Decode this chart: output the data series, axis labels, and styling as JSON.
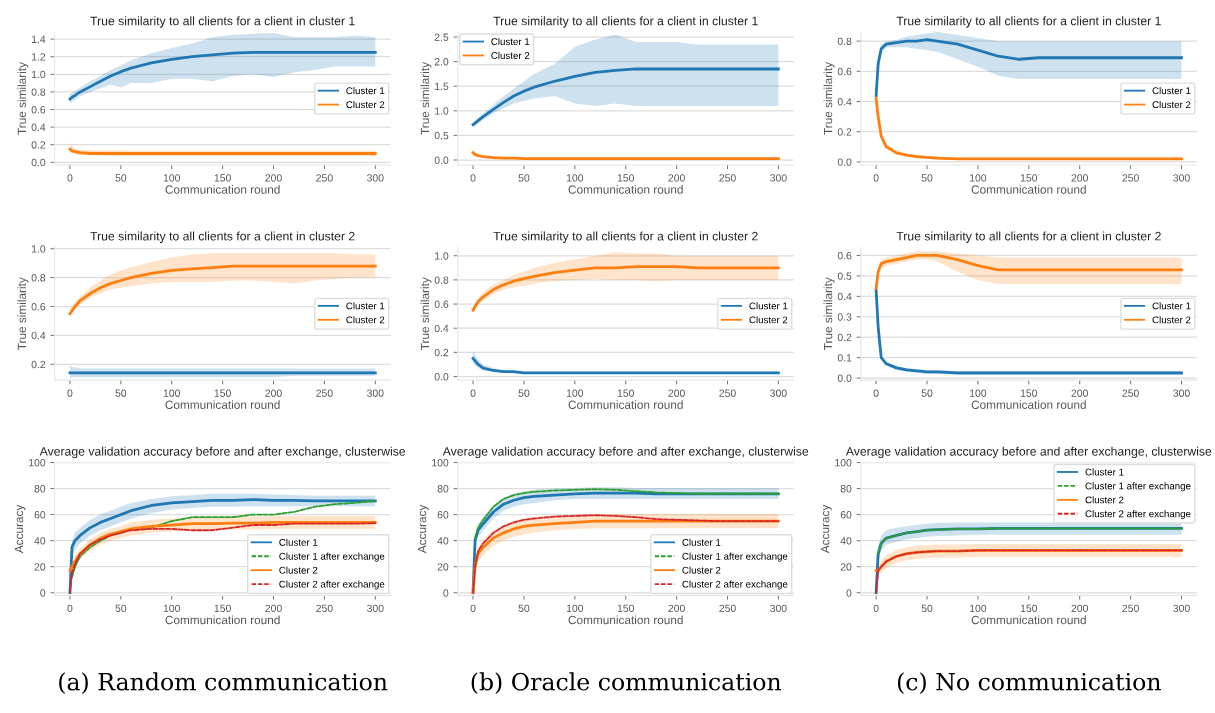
{
  "chart_data": [
    {
      "type": "line",
      "title": "True similarity to all clients for a client in cluster 1",
      "xlabel": "Communication round",
      "ylabel": "True similarity",
      "x": [
        0,
        2,
        5,
        10,
        20,
        30,
        40,
        50,
        60,
        80,
        100,
        120,
        140,
        160,
        180,
        200,
        220,
        240,
        260,
        280,
        300
      ],
      "xlim": [
        -15,
        315
      ],
      "xticks": [
        0,
        50,
        100,
        150,
        200,
        250,
        300
      ],
      "ylim": [
        -0.03,
        1.48
      ],
      "yticks": [
        {
          "value": 0,
          "label": "0.0"
        },
        0.2,
        0.4,
        0.6,
        0.8,
        {
          "value": 1,
          "label": "1.0"
        },
        1.2,
        1.4
      ],
      "grid": "y",
      "legend": "right",
      "series": [
        {
          "name": "Cluster 1",
          "color": "#1f77b4",
          "values": [
            0.72,
            0.74,
            0.76,
            0.8,
            0.86,
            0.92,
            0.98,
            1.03,
            1.07,
            1.13,
            1.17,
            1.2,
            1.22,
            1.24,
            1.25,
            1.25,
            1.25,
            1.25,
            1.25,
            1.25,
            1.25
          ],
          "lower": [
            0.66,
            0.69,
            0.71,
            0.75,
            0.8,
            0.84,
            0.88,
            0.85,
            0.9,
            0.9,
            0.95,
            0.95,
            0.92,
            0.98,
            1.0,
            0.97,
            1.02,
            1.05,
            1.09,
            1.09,
            1.09
          ],
          "upper": [
            0.78,
            0.79,
            0.81,
            0.85,
            0.92,
            0.98,
            1.05,
            1.1,
            1.16,
            1.24,
            1.3,
            1.35,
            1.42,
            1.45,
            1.46,
            1.47,
            1.42,
            1.42,
            1.42,
            1.44,
            1.42
          ]
        },
        {
          "name": "Cluster 2",
          "color": "#ff7f0e",
          "values": [
            0.15,
            0.13,
            0.12,
            0.11,
            0.1,
            0.1,
            0.1,
            0.1,
            0.1,
            0.1,
            0.1,
            0.1,
            0.1,
            0.1,
            0.1,
            0.1,
            0.1,
            0.1,
            0.1,
            0.1,
            0.1
          ],
          "lower": [
            0.12,
            0.1,
            0.09,
            0.08,
            0.08,
            0.08,
            0.07,
            0.07,
            0.07,
            0.07,
            0.07,
            0.07,
            0.07,
            0.07,
            0.07,
            0.07,
            0.07,
            0.07,
            0.07,
            0.07,
            0.07
          ],
          "upper": [
            0.23,
            0.18,
            0.15,
            0.14,
            0.14,
            0.14,
            0.14,
            0.14,
            0.13,
            0.13,
            0.13,
            0.13,
            0.13,
            0.13,
            0.13,
            0.13,
            0.13,
            0.13,
            0.13,
            0.13,
            0.13
          ]
        }
      ]
    },
    {
      "type": "line",
      "title": "True similarity to all clients for a client in cluster 1",
      "xlabel": "Communication round",
      "ylabel": "True similarity",
      "x": [
        0,
        2,
        5,
        10,
        20,
        30,
        40,
        50,
        60,
        80,
        100,
        120,
        140,
        160,
        180,
        200,
        220,
        240,
        260,
        280,
        300
      ],
      "xlim": [
        -15,
        315
      ],
      "xticks": [
        0,
        50,
        100,
        150,
        200,
        250,
        300
      ],
      "ylim": [
        -0.1,
        2.6
      ],
      "yticks": [
        {
          "value": 0,
          "label": "0.0"
        },
        0.5,
        {
          "value": 1,
          "label": "1.0"
        },
        1.5,
        {
          "value": 2,
          "label": "2.0"
        },
        2.5
      ],
      "grid": "y",
      "legend": "top left",
      "series": [
        {
          "name": "Cluster 1",
          "color": "#1f77b4",
          "values": [
            0.72,
            0.75,
            0.8,
            0.88,
            1.03,
            1.17,
            1.3,
            1.4,
            1.48,
            1.6,
            1.7,
            1.78,
            1.82,
            1.85,
            1.85,
            1.85,
            1.85,
            1.85,
            1.85,
            1.85,
            1.85
          ],
          "lower": [
            0.66,
            0.69,
            0.74,
            0.82,
            0.95,
            1.05,
            1.15,
            1.2,
            1.25,
            1.3,
            1.15,
            1.1,
            1.15,
            1.1,
            1.1,
            1.1,
            1.1,
            1.1,
            1.1,
            1.1,
            1.1
          ],
          "upper": [
            0.78,
            0.8,
            0.86,
            0.95,
            1.12,
            1.3,
            1.45,
            1.6,
            1.75,
            1.95,
            2.3,
            2.45,
            2.55,
            2.4,
            2.4,
            2.4,
            2.35,
            2.35,
            2.35,
            2.35,
            2.35
          ]
        },
        {
          "name": "Cluster 2",
          "color": "#ff7f0e",
          "values": [
            0.15,
            0.11,
            0.09,
            0.07,
            0.05,
            0.04,
            0.04,
            0.03,
            0.03,
            0.03,
            0.03,
            0.03,
            0.03,
            0.03,
            0.03,
            0.03,
            0.03,
            0.03,
            0.03,
            0.03,
            0.03
          ],
          "lower": [
            0.12,
            0.09,
            0.07,
            0.05,
            0.04,
            0.03,
            0.02,
            0.02,
            0.02,
            0.02,
            0.02,
            0.02,
            0.02,
            0.02,
            0.02,
            0.02,
            0.02,
            0.02,
            0.02,
            0.02,
            0.02
          ],
          "upper": [
            0.24,
            0.16,
            0.12,
            0.09,
            0.07,
            0.05,
            0.045,
            0.04,
            0.04,
            0.04,
            0.04,
            0.04,
            0.04,
            0.04,
            0.04,
            0.04,
            0.04,
            0.04,
            0.04,
            0.04,
            0.04
          ]
        }
      ]
    },
    {
      "type": "line",
      "title": "True similarity to all clients for a client in cluster 1",
      "xlabel": "Communication round",
      "ylabel": "True similarity",
      "x": [
        0,
        2,
        5,
        10,
        20,
        30,
        40,
        50,
        60,
        80,
        100,
        120,
        140,
        160,
        180,
        200,
        220,
        240,
        260,
        280,
        300
      ],
      "xlim": [
        -15,
        315
      ],
      "xticks": [
        0,
        50,
        100,
        150,
        200,
        250,
        300
      ],
      "ylim": [
        -0.02,
        0.86
      ],
      "yticks": [
        {
          "value": 0,
          "label": "0.0"
        },
        0.2,
        0.4,
        0.6,
        0.8
      ],
      "grid": "y",
      "legend": "right",
      "series": [
        {
          "name": "Cluster 1",
          "color": "#1f77b4",
          "values": [
            0.44,
            0.65,
            0.75,
            0.78,
            0.79,
            0.8,
            0.8,
            0.81,
            0.8,
            0.78,
            0.74,
            0.7,
            0.68,
            0.69,
            0.69,
            0.69,
            0.69,
            0.69,
            0.69,
            0.69,
            0.69
          ],
          "lower": [
            0.44,
            0.6,
            0.72,
            0.76,
            0.76,
            0.76,
            0.75,
            0.74,
            0.73,
            0.68,
            0.63,
            0.57,
            0.55,
            0.55,
            0.55,
            0.55,
            0.55,
            0.55,
            0.55,
            0.55,
            0.55
          ],
          "upper": [
            0.44,
            0.7,
            0.78,
            0.8,
            0.81,
            0.83,
            0.84,
            0.85,
            0.86,
            0.84,
            0.82,
            0.8,
            0.8,
            0.8,
            0.8,
            0.8,
            0.8,
            0.8,
            0.8,
            0.8,
            0.8
          ]
        },
        {
          "name": "Cluster 2",
          "color": "#ff7f0e",
          "values": [
            0.42,
            0.3,
            0.17,
            0.1,
            0.06,
            0.045,
            0.035,
            0.03,
            0.025,
            0.02,
            0.02,
            0.02,
            0.02,
            0.02,
            0.02,
            0.02,
            0.02,
            0.02,
            0.02,
            0.02,
            0.02
          ],
          "lower": [
            0.41,
            0.28,
            0.15,
            0.09,
            0.05,
            0.035,
            0.025,
            0.02,
            0.015,
            0.015,
            0.015,
            0.015,
            0.015,
            0.015,
            0.015,
            0.015,
            0.015,
            0.015,
            0.015,
            0.015,
            0.015
          ],
          "upper": [
            0.42,
            0.32,
            0.19,
            0.12,
            0.075,
            0.055,
            0.045,
            0.04,
            0.035,
            0.03,
            0.03,
            0.03,
            0.03,
            0.03,
            0.03,
            0.03,
            0.03,
            0.03,
            0.03,
            0.03,
            0.03
          ]
        }
      ]
    },
    {
      "type": "line",
      "title": "True similarity to all clients for a client in cluster 2",
      "xlabel": "Communication round",
      "ylabel": "True similarity",
      "x": [
        0,
        2,
        5,
        10,
        20,
        30,
        40,
        50,
        60,
        80,
        100,
        120,
        140,
        160,
        180,
        200,
        220,
        240,
        260,
        280,
        300
      ],
      "xlim": [
        -15,
        315
      ],
      "xticks": [
        0,
        50,
        100,
        150,
        200,
        250,
        300
      ],
      "ylim": [
        0.09,
        1.01
      ],
      "yticks": [
        0.2,
        0.4,
        0.6,
        0.8,
        {
          "value": 1,
          "label": "1.0"
        }
      ],
      "grid": "y",
      "legend": "right",
      "series": [
        {
          "name": "Cluster 1",
          "color": "#1f77b4",
          "values": [
            0.14,
            0.14,
            0.14,
            0.14,
            0.14,
            0.14,
            0.14,
            0.14,
            0.14,
            0.14,
            0.14,
            0.14,
            0.14,
            0.14,
            0.14,
            0.14,
            0.14,
            0.14,
            0.14,
            0.14,
            0.14
          ],
          "lower": [
            0.1,
            0.11,
            0.11,
            0.11,
            0.11,
            0.11,
            0.11,
            0.11,
            0.11,
            0.11,
            0.11,
            0.11,
            0.11,
            0.11,
            0.11,
            0.11,
            0.12,
            0.12,
            0.12,
            0.12,
            0.12
          ],
          "upper": [
            0.2,
            0.18,
            0.18,
            0.17,
            0.17,
            0.17,
            0.17,
            0.17,
            0.17,
            0.17,
            0.17,
            0.17,
            0.17,
            0.17,
            0.17,
            0.17,
            0.17,
            0.17,
            0.17,
            0.17,
            0.17
          ]
        },
        {
          "name": "Cluster 2",
          "color": "#ff7f0e",
          "values": [
            0.55,
            0.57,
            0.6,
            0.64,
            0.69,
            0.73,
            0.76,
            0.78,
            0.8,
            0.83,
            0.85,
            0.86,
            0.87,
            0.88,
            0.88,
            0.88,
            0.88,
            0.88,
            0.88,
            0.88,
            0.88
          ],
          "lower": [
            0.52,
            0.55,
            0.58,
            0.61,
            0.66,
            0.69,
            0.72,
            0.73,
            0.74,
            0.76,
            0.77,
            0.77,
            0.77,
            0.78,
            0.78,
            0.77,
            0.76,
            0.78,
            0.79,
            0.8,
            0.8
          ],
          "upper": [
            0.58,
            0.6,
            0.63,
            0.67,
            0.73,
            0.78,
            0.82,
            0.85,
            0.87,
            0.91,
            0.94,
            0.96,
            0.97,
            0.97,
            0.97,
            0.97,
            0.97,
            0.97,
            0.97,
            0.96,
            0.96
          ]
        }
      ]
    },
    {
      "type": "line",
      "title": "True similarity to all clients for a client in cluster 2",
      "xlabel": "Communication round",
      "ylabel": "True similarity",
      "x": [
        0,
        2,
        5,
        10,
        20,
        30,
        40,
        50,
        60,
        80,
        100,
        120,
        140,
        160,
        180,
        200,
        220,
        240,
        260,
        280,
        300
      ],
      "xlim": [
        -15,
        315
      ],
      "xticks": [
        0,
        50,
        100,
        150,
        200,
        250,
        300
      ],
      "ylim": [
        -0.03,
        1.07
      ],
      "yticks": [
        {
          "value": 0,
          "label": "0.0"
        },
        0.2,
        0.4,
        0.6,
        0.8,
        {
          "value": 1,
          "label": "1.0"
        }
      ],
      "grid": "y",
      "legend": "right",
      "series": [
        {
          "name": "Cluster 1",
          "color": "#1f77b4",
          "values": [
            0.15,
            0.13,
            0.1,
            0.07,
            0.05,
            0.04,
            0.04,
            0.03,
            0.03,
            0.03,
            0.03,
            0.03,
            0.03,
            0.03,
            0.03,
            0.03,
            0.03,
            0.03,
            0.03,
            0.03,
            0.03
          ],
          "lower": [
            0.11,
            0.09,
            0.07,
            0.05,
            0.04,
            0.03,
            0.025,
            0.02,
            0.02,
            0.02,
            0.02,
            0.02,
            0.02,
            0.02,
            0.02,
            0.02,
            0.02,
            0.02,
            0.02,
            0.02,
            0.02
          ],
          "upper": [
            0.21,
            0.18,
            0.14,
            0.1,
            0.07,
            0.05,
            0.045,
            0.04,
            0.04,
            0.04,
            0.04,
            0.04,
            0.04,
            0.04,
            0.04,
            0.04,
            0.04,
            0.04,
            0.04,
            0.04,
            0.04
          ]
        },
        {
          "name": "Cluster 2",
          "color": "#ff7f0e",
          "values": [
            0.55,
            0.58,
            0.62,
            0.66,
            0.72,
            0.76,
            0.79,
            0.81,
            0.83,
            0.86,
            0.88,
            0.9,
            0.9,
            0.91,
            0.91,
            0.91,
            0.9,
            0.9,
            0.9,
            0.9,
            0.9
          ],
          "lower": [
            0.52,
            0.55,
            0.59,
            0.63,
            0.68,
            0.72,
            0.74,
            0.75,
            0.77,
            0.79,
            0.8,
            0.81,
            0.8,
            0.8,
            0.79,
            0.8,
            0.8,
            0.8,
            0.8,
            0.8,
            0.8
          ],
          "upper": [
            0.58,
            0.61,
            0.65,
            0.7,
            0.76,
            0.8,
            0.84,
            0.87,
            0.9,
            0.94,
            0.97,
            1.0,
            1.03,
            1.02,
            1.02,
            1.0,
            1.0,
            1.0,
            1.0,
            1.0,
            1.0
          ]
        }
      ]
    },
    {
      "type": "line",
      "title": "True similarity to all clients for a client in cluster 2",
      "xlabel": "Communication round",
      "ylabel": "True similarity",
      "x": [
        0,
        2,
        5,
        10,
        20,
        30,
        40,
        50,
        60,
        80,
        100,
        120,
        140,
        160,
        180,
        200,
        220,
        240,
        260,
        280,
        300
      ],
      "xlim": [
        -15,
        315
      ],
      "xticks": [
        0,
        50,
        100,
        150,
        200,
        250,
        300
      ],
      "ylim": [
        -0.01,
        0.64
      ],
      "yticks": [
        {
          "value": 0,
          "label": "0.0"
        },
        0.1,
        0.2,
        0.3,
        0.4,
        0.5,
        0.6
      ],
      "grid": "y",
      "legend": "right",
      "series": [
        {
          "name": "Cluster 1",
          "color": "#1f77b4",
          "values": [
            0.43,
            0.25,
            0.1,
            0.07,
            0.05,
            0.04,
            0.035,
            0.03,
            0.03,
            0.025,
            0.025,
            0.025,
            0.025,
            0.025,
            0.025,
            0.025,
            0.025,
            0.025,
            0.025,
            0.025,
            0.025
          ],
          "lower": [
            0.42,
            0.23,
            0.09,
            0.06,
            0.04,
            0.03,
            0.025,
            0.02,
            0.02,
            0.02,
            0.02,
            0.02,
            0.02,
            0.02,
            0.02,
            0.02,
            0.02,
            0.02,
            0.02,
            0.02,
            0.02
          ],
          "upper": [
            0.44,
            0.27,
            0.11,
            0.08,
            0.06,
            0.05,
            0.045,
            0.04,
            0.04,
            0.035,
            0.035,
            0.035,
            0.035,
            0.035,
            0.035,
            0.035,
            0.035,
            0.035,
            0.035,
            0.035,
            0.035
          ]
        },
        {
          "name": "Cluster 2",
          "color": "#ff7f0e",
          "values": [
            0.44,
            0.52,
            0.56,
            0.57,
            0.58,
            0.59,
            0.6,
            0.6,
            0.6,
            0.58,
            0.55,
            0.53,
            0.53,
            0.53,
            0.53,
            0.53,
            0.53,
            0.53,
            0.53,
            0.53,
            0.53
          ],
          "lower": [
            0.44,
            0.5,
            0.54,
            0.55,
            0.56,
            0.57,
            0.58,
            0.58,
            0.57,
            0.52,
            0.48,
            0.46,
            0.46,
            0.46,
            0.46,
            0.46,
            0.46,
            0.46,
            0.46,
            0.46,
            0.46
          ],
          "upper": [
            0.44,
            0.54,
            0.58,
            0.59,
            0.6,
            0.61,
            0.62,
            0.62,
            0.62,
            0.61,
            0.6,
            0.59,
            0.59,
            0.59,
            0.59,
            0.59,
            0.59,
            0.59,
            0.59,
            0.59,
            0.59
          ]
        }
      ]
    },
    {
      "type": "line",
      "title": "Average validation accuracy before and after exchange, clusterwise",
      "xlabel": "Communication round",
      "ylabel": "Accuracy",
      "x": [
        0,
        2,
        5,
        10,
        20,
        30,
        40,
        50,
        60,
        80,
        100,
        120,
        140,
        160,
        180,
        200,
        220,
        240,
        260,
        280,
        300
      ],
      "xlim": [
        -15,
        315
      ],
      "xticks": [
        0,
        50,
        100,
        150,
        200,
        250,
        300
      ],
      "ylim": [
        -2,
        100
      ],
      "yticks": [
        0,
        20,
        40,
        60,
        80,
        100
      ],
      "grid": "y",
      "legend": "bottom right",
      "annotations": [
        "(a) Random communication"
      ],
      "series": [
        {
          "name": "Cluster 1",
          "color": "#1f77b4",
          "line_style": "solid",
          "values": [
            0,
            35,
            40,
            44,
            50,
            54,
            57,
            60,
            63,
            67,
            69,
            70,
            71,
            71,
            71.5,
            71,
            71,
            70.5,
            70.5,
            70.5,
            70.5
          ],
          "lower": [
            0,
            28,
            33,
            38,
            44,
            48,
            51,
            54,
            57,
            61,
            64,
            65,
            66,
            66,
            66.5,
            66.5,
            66.5,
            66.5,
            66.5,
            66.5,
            66.5
          ],
          "upper": [
            0,
            40,
            46,
            50,
            56,
            60,
            63,
            66,
            69,
            72,
            74,
            75,
            76,
            76,
            76,
            75.5,
            75,
            74.5,
            74.5,
            74.5,
            74.5
          ]
        },
        {
          "name": "Cluster 1 after exchange",
          "color": "#2ca02c",
          "line_style": "dashed",
          "values": [
            null,
            12,
            20,
            28,
            35,
            40,
            44,
            46,
            49,
            50,
            55,
            58,
            58,
            58,
            60,
            60,
            62,
            66,
            68,
            69,
            70.5
          ]
        },
        {
          "name": "Cluster 2",
          "color": "#ff7f0e",
          "line_style": "solid",
          "values": [
            17,
            20,
            24,
            30,
            37,
            42,
            45,
            47,
            49,
            51,
            52,
            53,
            53,
            53.5,
            53.5,
            54,
            54,
            54,
            54,
            54,
            54
          ],
          "lower": [
            17,
            17,
            20,
            26,
            32,
            37,
            40,
            42,
            44,
            46,
            47,
            48,
            48,
            48.5,
            48.5,
            49,
            49,
            49,
            49,
            49,
            49
          ],
          "upper": [
            17,
            23,
            28,
            34,
            41,
            46,
            49,
            51,
            54,
            56,
            57,
            58,
            58,
            58.5,
            58.5,
            59,
            59,
            59,
            59,
            59,
            59
          ]
        },
        {
          "name": "Cluster 2 after exchange",
          "color": "#d62728",
          "line_style": "dashed",
          "values": [
            0,
            15,
            22,
            30,
            37,
            41,
            44,
            46,
            48,
            49,
            49,
            48,
            48,
            50,
            52,
            52,
            53,
            53,
            53,
            53,
            53.5
          ]
        }
      ]
    },
    {
      "type": "line",
      "title": "Average validation accuracy before and after exchange, clusterwise",
      "xlabel": "Communication round",
      "ylabel": "Accuracy",
      "x": [
        0,
        2,
        5,
        10,
        20,
        30,
        40,
        50,
        60,
        80,
        100,
        120,
        140,
        160,
        180,
        200,
        220,
        240,
        260,
        280,
        300
      ],
      "xlim": [
        -15,
        315
      ],
      "xticks": [
        0,
        50,
        100,
        150,
        200,
        250,
        300
      ],
      "ylim": [
        -2,
        100
      ],
      "yticks": [
        0,
        20,
        40,
        60,
        80,
        100
      ],
      "grid": "y",
      "legend": "bottom right",
      "annotations": [
        "(b) Oracle communication"
      ],
      "series": [
        {
          "name": "Cluster 1",
          "color": "#1f77b4",
          "line_style": "solid",
          "values": [
            0,
            40,
            48,
            53,
            62,
            68,
            71,
            73,
            74,
            75,
            76,
            76.5,
            76.5,
            76.5,
            76,
            76,
            76,
            76,
            76,
            76,
            76
          ],
          "lower": [
            0,
            35,
            43,
            48,
            57,
            63,
            66,
            68,
            69,
            71,
            72,
            72,
            72,
            72,
            72,
            72,
            72,
            72,
            72,
            72,
            72
          ],
          "upper": [
            0,
            45,
            53,
            58,
            67,
            73,
            76,
            78,
            79,
            80,
            80.5,
            81,
            81,
            80.5,
            80.5,
            80.5,
            80.5,
            80.5,
            80.5,
            80.5,
            80.5
          ]
        },
        {
          "name": "Cluster 1 after exchange",
          "color": "#2ca02c",
          "line_style": "dashed",
          "values": [
            null,
            42,
            50,
            56,
            66,
            72,
            75,
            76.5,
            77.5,
            78.5,
            79,
            79.5,
            79,
            78,
            77,
            76.5,
            76,
            76,
            76,
            76,
            76
          ]
        },
        {
          "name": "Cluster 2",
          "color": "#ff7f0e",
          "line_style": "solid",
          "values": [
            0,
            20,
            30,
            35,
            42,
            46,
            49,
            51,
            52,
            53,
            54,
            55,
            55,
            55,
            55,
            55,
            55,
            55,
            55,
            55,
            55
          ],
          "lower": [
            0,
            15,
            24,
            29,
            36,
            40,
            43,
            45,
            46,
            48,
            49,
            49.5,
            49.5,
            49.5,
            49.5,
            49.5,
            49.5,
            49.5,
            49.5,
            49.5,
            49.5
          ],
          "upper": [
            0,
            25,
            35,
            41,
            48,
            52,
            55,
            57,
            58,
            59,
            60,
            60.5,
            60.5,
            60.5,
            60.5,
            60.5,
            60.5,
            60.5,
            60.5,
            60.5,
            60.5
          ]
        },
        {
          "name": "Cluster 2 after exchange",
          "color": "#d62728",
          "line_style": "dashed",
          "values": [
            0,
            20,
            32,
            38,
            46,
            51,
            54,
            56,
            57,
            58.5,
            59,
            59.5,
            59,
            58,
            56.5,
            56,
            55.5,
            55,
            55,
            55,
            55
          ]
        }
      ]
    },
    {
      "type": "line",
      "title": "Average validation accuracy before and after exchange, clusterwise",
      "xlabel": "Communication round",
      "ylabel": "Accuracy",
      "x": [
        0,
        2,
        5,
        10,
        20,
        30,
        40,
        50,
        60,
        80,
        100,
        120,
        140,
        160,
        180,
        200,
        220,
        240,
        260,
        280,
        300
      ],
      "xlim": [
        -15,
        315
      ],
      "xticks": [
        0,
        50,
        100,
        150,
        200,
        250,
        300
      ],
      "ylim": [
        -2,
        100
      ],
      "yticks": [
        0,
        20,
        40,
        60,
        80,
        100
      ],
      "grid": "y",
      "legend": "top right",
      "annotations": [
        "(c) No communication"
      ],
      "series": [
        {
          "name": "Cluster 1",
          "color": "#1f77b4",
          "line_style": "solid",
          "values": [
            0,
            30,
            38,
            42,
            44,
            46,
            47,
            48,
            48.5,
            49,
            49,
            49.5,
            49.5,
            49.5,
            49.5,
            49.5,
            49.5,
            49.5,
            49.5,
            49.5,
            49.5
          ],
          "lower": [
            0,
            24,
            32,
            37,
            39,
            41,
            42,
            43,
            43.5,
            44,
            44.5,
            44.5,
            44.5,
            44.5,
            44.5,
            44.5,
            44.5,
            44.5,
            44.5,
            44.5,
            44.5
          ],
          "upper": [
            0,
            36,
            44,
            48,
            50,
            51,
            52,
            53,
            53.5,
            54,
            54,
            54,
            54,
            54,
            54,
            54,
            54,
            54,
            54,
            54,
            54
          ]
        },
        {
          "name": "Cluster 1 after exchange",
          "color": "#2ca02c",
          "line_style": "dashed",
          "values": [
            null,
            30,
            38,
            42,
            44,
            46,
            47,
            48,
            48.5,
            49,
            49,
            49.5,
            49.5,
            49.5,
            49.5,
            49.5,
            49.5,
            49.5,
            49.5,
            49.5,
            49.5
          ]
        },
        {
          "name": "Cluster 2",
          "color": "#ff7f0e",
          "line_style": "solid",
          "values": [
            17,
            17,
            20,
            24,
            28,
            30,
            31,
            31.5,
            32,
            32,
            32.5,
            32.5,
            32.5,
            32.5,
            32.5,
            32.5,
            32.5,
            32.5,
            32.5,
            32.5,
            32.5
          ],
          "lower": [
            17,
            13,
            15,
            19,
            23,
            25,
            26,
            26.5,
            27,
            27,
            27.5,
            27.5,
            27.5,
            27.5,
            27.5,
            27.5,
            27.5,
            27.5,
            27.5,
            27.5,
            27.5
          ],
          "upper": [
            17,
            21,
            25,
            29,
            33,
            35,
            36,
            36.5,
            37,
            37,
            37.5,
            37.5,
            37.5,
            37.5,
            37.5,
            37.5,
            37.5,
            37.5,
            37.5,
            37.5,
            37.5
          ]
        },
        {
          "name": "Cluster 2 after exchange",
          "color": "#d62728",
          "line_style": "dashed",
          "values": [
            0,
            17,
            20,
            24,
            28,
            30,
            31,
            31.5,
            32,
            32,
            32.5,
            32.5,
            32.5,
            32.5,
            32.5,
            32.5,
            32.5,
            32.5,
            32.5,
            32.5,
            32.5
          ]
        }
      ]
    }
  ]
}
